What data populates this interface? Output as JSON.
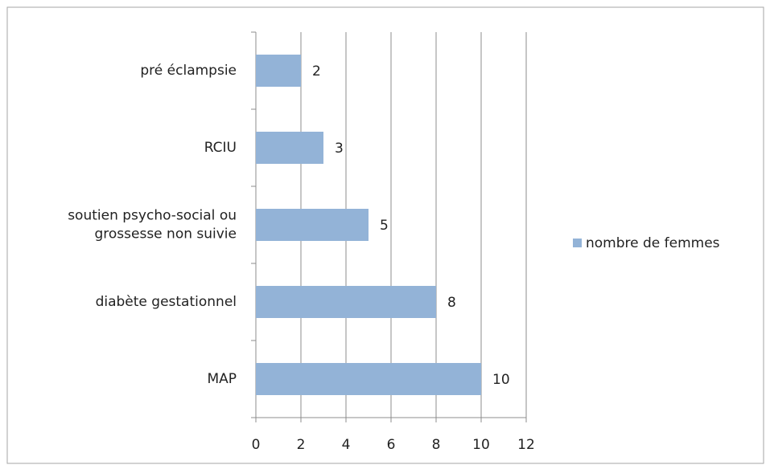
{
  "chart_data": {
    "type": "bar",
    "orientation": "horizontal",
    "categories": [
      "pré éclampsie",
      "RCIU",
      "soutien psycho-social ou\ngrossesse non suivie",
      "diabète gestationnel",
      "MAP"
    ],
    "series": [
      {
        "name": "nombre de femmes",
        "color": "#93b3d7",
        "values": [
          2,
          3,
          5,
          8,
          10
        ]
      }
    ],
    "xlim": [
      0,
      12
    ],
    "xticks": [
      0,
      2,
      4,
      6,
      8,
      10,
      12
    ],
    "grid": true,
    "legend": "right"
  }
}
